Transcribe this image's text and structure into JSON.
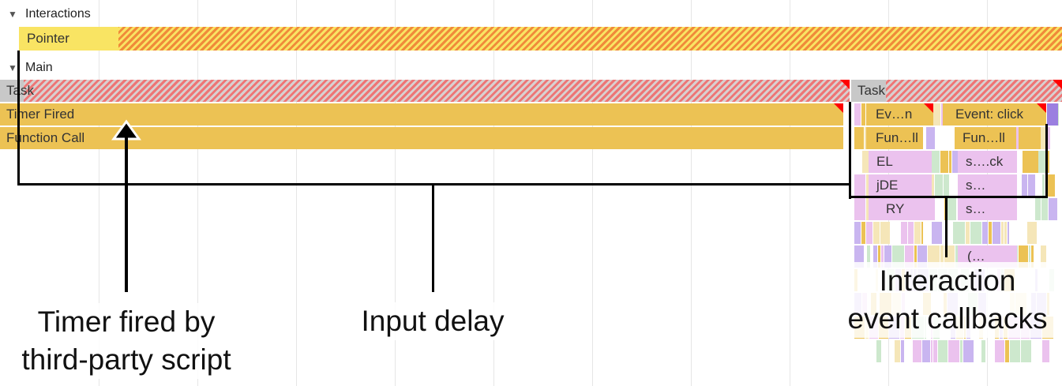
{
  "tracks": {
    "interactions": {
      "label": "Interactions",
      "bar": "Pointer"
    },
    "main": {
      "label": "Main",
      "task1": "Task",
      "task2": "Task",
      "timer_fired": "Timer Fired",
      "function_call": "Function Call",
      "event1": "Ev…n",
      "event2": "Event: click",
      "fun1": "Fun…ll",
      "fun2": "Fun…ll",
      "el": "EL",
      "sck": "s….ck",
      "jde": "jDE",
      "s1": "s…",
      "ry": "RY",
      "s2": "s…",
      "paren": "(…"
    }
  },
  "annotations": {
    "timer": [
      "Timer fired by",
      "third-party script"
    ],
    "input_delay": "Input delay",
    "callbacks": [
      "Interaction",
      "event callbacks"
    ]
  },
  "colors": {
    "scripting": "#ecc254",
    "function": "#ebc2ee",
    "interaction": "#f9e463",
    "long_task_marker": "#ff0000"
  }
}
